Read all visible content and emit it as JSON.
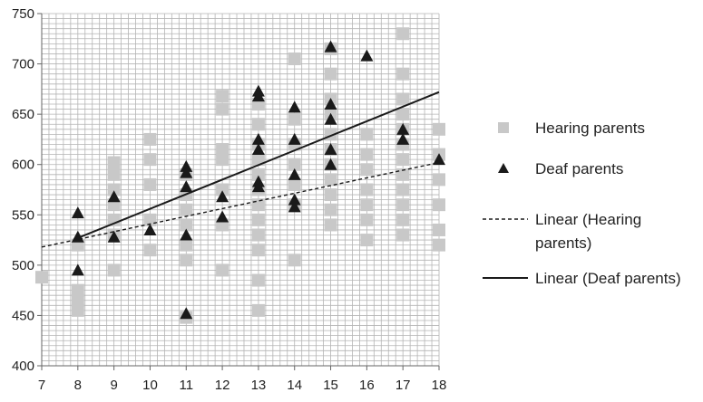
{
  "chart_data": {
    "type": "scatter",
    "xlim": [
      7,
      18
    ],
    "ylim": [
      400,
      750
    ],
    "x_ticks": [
      "7",
      "8",
      "9",
      "10",
      "11",
      "12",
      "13",
      "14",
      "15",
      "16",
      "17",
      "18"
    ],
    "y_ticks": [
      "400",
      "450",
      "500",
      "550",
      "600",
      "650",
      "700",
      "750"
    ],
    "grid": true,
    "legend_position": "right",
    "series": [
      {
        "name": "Hearing parents",
        "marker": "square",
        "color": "#c8c8c8",
        "points": [
          [
            7,
            488
          ],
          [
            8,
            455
          ],
          [
            8,
            465
          ],
          [
            8,
            475
          ],
          [
            8,
            520
          ],
          [
            9,
            495
          ],
          [
            9,
            530
          ],
          [
            9,
            545
          ],
          [
            9,
            560
          ],
          [
            9,
            575
          ],
          [
            9,
            590
          ],
          [
            9,
            602
          ],
          [
            10,
            515
          ],
          [
            10,
            545
          ],
          [
            10,
            580
          ],
          [
            10,
            605
          ],
          [
            10,
            625
          ],
          [
            11,
            448
          ],
          [
            11,
            505
          ],
          [
            11,
            520
          ],
          [
            11,
            540
          ],
          [
            11,
            555
          ],
          [
            11,
            570
          ],
          [
            11,
            590
          ],
          [
            12,
            495
          ],
          [
            12,
            540
          ],
          [
            12,
            575
          ],
          [
            12,
            605
          ],
          [
            12,
            615
          ],
          [
            12,
            655
          ],
          [
            12,
            668
          ],
          [
            13,
            455
          ],
          [
            13,
            485
          ],
          [
            13,
            515
          ],
          [
            13,
            530
          ],
          [
            13,
            545
          ],
          [
            13,
            560
          ],
          [
            13,
            575
          ],
          [
            13,
            590
          ],
          [
            13,
            605
          ],
          [
            13,
            620
          ],
          [
            13,
            640
          ],
          [
            13,
            660
          ],
          [
            14,
            505
          ],
          [
            14,
            560
          ],
          [
            14,
            580
          ],
          [
            14,
            600
          ],
          [
            14,
            620
          ],
          [
            14,
            645
          ],
          [
            14,
            705
          ],
          [
            15,
            540
          ],
          [
            15,
            555
          ],
          [
            15,
            570
          ],
          [
            15,
            585
          ],
          [
            15,
            600
          ],
          [
            15,
            615
          ],
          [
            15,
            630
          ],
          [
            15,
            650
          ],
          [
            15,
            665
          ],
          [
            15,
            690
          ],
          [
            15,
            715
          ],
          [
            16,
            525
          ],
          [
            16,
            545
          ],
          [
            16,
            560
          ],
          [
            16,
            575
          ],
          [
            16,
            595
          ],
          [
            16,
            610
          ],
          [
            16,
            630
          ],
          [
            17,
            530
          ],
          [
            17,
            545
          ],
          [
            17,
            560
          ],
          [
            17,
            575
          ],
          [
            17,
            590
          ],
          [
            17,
            605
          ],
          [
            17,
            620
          ],
          [
            17,
            635
          ],
          [
            17,
            650
          ],
          [
            17,
            665
          ],
          [
            17,
            690
          ],
          [
            17,
            730
          ],
          [
            18,
            520
          ],
          [
            18,
            535
          ],
          [
            18,
            560
          ],
          [
            18,
            585
          ],
          [
            18,
            610
          ],
          [
            18,
            635
          ]
        ]
      },
      {
        "name": "Deaf parents",
        "marker": "triangle",
        "color": "#1a1a1a",
        "points": [
          [
            8,
            495
          ],
          [
            8,
            528
          ],
          [
            8,
            552
          ],
          [
            9,
            528
          ],
          [
            9,
            568
          ],
          [
            10,
            535
          ],
          [
            11,
            452
          ],
          [
            11,
            530
          ],
          [
            11,
            578
          ],
          [
            11,
            592
          ],
          [
            11,
            598
          ],
          [
            12,
            548
          ],
          [
            12,
            568
          ],
          [
            13,
            578
          ],
          [
            13,
            583
          ],
          [
            13,
            615
          ],
          [
            13,
            625
          ],
          [
            13,
            668
          ],
          [
            13,
            673
          ],
          [
            14,
            558
          ],
          [
            14,
            565
          ],
          [
            14,
            590
          ],
          [
            14,
            625
          ],
          [
            14,
            657
          ],
          [
            15,
            600
          ],
          [
            15,
            615
          ],
          [
            15,
            645
          ],
          [
            15,
            660
          ],
          [
            15,
            717
          ],
          [
            16,
            708
          ],
          [
            17,
            625
          ],
          [
            17,
            635
          ],
          [
            18,
            605
          ]
        ]
      }
    ],
    "trendlines": [
      {
        "name": "Linear (Hearing parents)",
        "style": "dashed",
        "color": "#1a1a1a",
        "from": [
          7,
          518
        ],
        "to": [
          18,
          602
        ]
      },
      {
        "name": "Linear (Deaf parents)",
        "style": "solid",
        "color": "#1a1a1a",
        "from": [
          8,
          527
        ],
        "to": [
          18,
          672
        ]
      }
    ],
    "legend": [
      {
        "label": "Hearing parents",
        "kind": "square"
      },
      {
        "label": "Deaf parents",
        "kind": "triangle"
      },
      {
        "label_lines": [
          "Linear (Hearing",
          "parents)"
        ],
        "kind": "dashed"
      },
      {
        "label": "Linear (Deaf parents)",
        "kind": "solid"
      }
    ]
  }
}
